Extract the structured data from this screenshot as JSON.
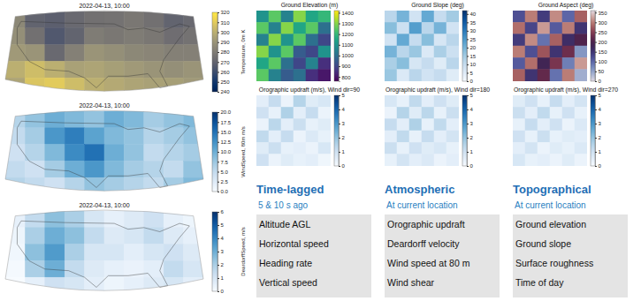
{
  "chart_data": [
    {
      "type": "map",
      "title": "2022-04-13, 10:00",
      "color": "cividis",
      "tick_labels": false,
      "cells": [
        [
          285,
          270,
          268,
          272,
          275,
          276,
          278,
          275,
          270,
          272
        ],
        [
          288,
          275,
          265,
          270,
          280,
          278,
          280,
          278,
          274,
          276
        ],
        [
          292,
          290,
          272,
          282,
          290,
          288,
          285,
          284,
          282,
          282
        ],
        [
          300,
          305,
          300,
          295,
          296,
          294,
          292,
          290,
          288,
          290
        ],
        [
          296,
          308,
          310,
          305,
          300,
          298,
          296,
          295,
          294,
          292
        ]
      ],
      "colorbar_title": "Temperature, 0m K",
      "colorbar_range": [
        240,
        320
      ],
      "colorbar_ticks": [
        240,
        250,
        260,
        270,
        280,
        290,
        300,
        310,
        320
      ]
    },
    {
      "type": "map",
      "title": "2022-04-13, 10:00",
      "color": "blues",
      "tick_labels": false,
      "cells": [
        [
          6,
          8,
          10,
          9,
          8,
          10,
          9,
          7,
          8,
          9
        ],
        [
          5,
          7,
          12,
          14,
          11,
          9,
          8,
          6,
          7,
          8
        ],
        [
          4,
          6,
          9,
          13,
          15,
          10,
          8,
          5,
          6,
          7
        ],
        [
          5,
          4,
          7,
          10,
          12,
          9,
          7,
          6,
          5,
          8
        ],
        [
          6,
          5,
          4,
          6,
          8,
          7,
          6,
          5,
          7,
          9
        ]
      ],
      "colorbar_title": "WindSpeed, 80m m/s",
      "colorbar_range": [
        0,
        20
      ],
      "colorbar_ticks": [
        {
          "value": 0,
          "label": "0.0"
        },
        {
          "value": 2.5,
          "label": "2.5"
        },
        {
          "value": 5,
          "label": "5.0"
        },
        {
          "value": 7.5,
          "label": "7.5"
        },
        {
          "value": 10,
          "label": "10.0"
        },
        {
          "value": 12.5,
          "label": "12.5"
        },
        {
          "value": 15,
          "label": "15.0"
        },
        {
          "value": 17.5,
          "label": "17.5"
        },
        {
          "value": 20,
          "label": "20.0"
        }
      ]
    },
    {
      "type": "map",
      "title": "2022-04-13, 10:00",
      "color": "blues",
      "tick_labels": false,
      "cells": [
        [
          0.5,
          1.5,
          2.5,
          2,
          1,
          0.5,
          0.8,
          1.2,
          0.5,
          0.3
        ],
        [
          0.3,
          2,
          3,
          2.5,
          1.5,
          0.8,
          1,
          1.5,
          0.8,
          0.5
        ],
        [
          0.2,
          2.5,
          3.5,
          2,
          1,
          1,
          0.6,
          1,
          1.2,
          0.8
        ],
        [
          0.1,
          2,
          3,
          1.5,
          0.8,
          0.5,
          0.4,
          0.6,
          1.5,
          1
        ],
        [
          0,
          0.5,
          1.2,
          1,
          0.6,
          0.3,
          0.5,
          0.8,
          1,
          0.6
        ]
      ],
      "colorbar_title": "DeardorffSpeed, m/s",
      "colorbar_range": [
        0,
        6
      ],
      "colorbar_ticks": [
        0,
        1,
        2,
        3,
        4,
        5,
        6
      ]
    },
    {
      "type": "heatmap",
      "title": "Ground Elevation (m)",
      "color": "viridis",
      "tick_labels": false,
      "cells": [
        [
          1100,
          1250,
          1050,
          1300,
          1150,
          1200
        ],
        [
          1250,
          1050,
          1300,
          1150,
          1250,
          1000
        ],
        [
          1050,
          1300,
          1100,
          1250,
          1000,
          900
        ],
        [
          1300,
          1100,
          1250,
          950,
          900,
          1100
        ],
        [
          1150,
          1250,
          1000,
          900,
          1050,
          850
        ],
        [
          1250,
          1050,
          950,
          1000,
          850,
          800
        ]
      ],
      "colorbar_range": [
        760,
        1420
      ],
      "colorbar_ticks": [
        800,
        900,
        1000,
        1100,
        1200,
        1300,
        1400
      ]
    },
    {
      "type": "heatmap",
      "title": "Ground Slope (deg)",
      "color": "blues",
      "tick_labels": false,
      "cells": [
        [
          12,
          20,
          8,
          22,
          10,
          15
        ],
        [
          18,
          9,
          24,
          12,
          20,
          8
        ],
        [
          8,
          22,
          10,
          18,
          7,
          12
        ],
        [
          20,
          12,
          16,
          6,
          14,
          9
        ],
        [
          14,
          18,
          7,
          10,
          5,
          12
        ],
        [
          16,
          6,
          12,
          8,
          10,
          5
        ]
      ],
      "colorbar_range": [
        0,
        42
      ],
      "colorbar_ticks": [
        0,
        5,
        10,
        15,
        20,
        25,
        30,
        35,
        40
      ]
    },
    {
      "type": "heatmap",
      "title": "Ground Aspect (deg)",
      "color": "twilight",
      "tick_labels": false,
      "cells": [
        [
          120,
          300,
          140,
          310,
          100,
          280
        ],
        [
          290,
          130,
          320,
          110,
          300,
          150
        ],
        [
          140,
          310,
          90,
          280,
          160,
          200
        ],
        [
          300,
          120,
          270,
          150,
          230,
          60
        ],
        [
          110,
          290,
          180,
          240,
          80,
          320
        ],
        [
          280,
          150,
          220,
          90,
          300,
          40
        ]
      ],
      "colorbar_range": [
        0,
        360
      ],
      "colorbar_ticks": [
        0,
        50,
        100,
        150,
        200,
        250,
        300,
        350
      ]
    },
    {
      "type": "heatmap",
      "title": "Orographic updraft (m/s), Wind dir=90",
      "color": "blues",
      "tick_labels": false,
      "cells": [
        [
          0.5,
          1.2,
          0.3,
          1.5,
          0.6,
          0.8
        ],
        [
          1.0,
          0.4,
          1.6,
          0.5,
          1.2,
          0.3
        ],
        [
          0.3,
          1.4,
          0.5,
          1.1,
          0.4,
          0.6
        ],
        [
          1.3,
          0.5,
          1.2,
          0.3,
          0.7,
          0.4
        ],
        [
          0.6,
          1.1,
          0.4,
          0.5,
          0.3,
          0.8
        ],
        [
          1.0,
          0.3,
          0.6,
          0.4,
          0.5,
          0.2
        ]
      ],
      "colorbar_range": [
        0,
        5
      ],
      "colorbar_ticks": [
        0,
        1,
        2,
        3,
        4,
        5
      ]
    },
    {
      "type": "heatmap",
      "title": "Orographic updraft (m/s), Wind dir=180",
      "color": "blues",
      "tick_labels": false,
      "cells": [
        [
          0.8,
          0.4,
          1.3,
          0.5,
          1.0,
          0.6
        ],
        [
          0.3,
          1.5,
          0.6,
          1.4,
          0.4,
          1.1
        ],
        [
          1.2,
          0.5,
          1.6,
          0.4,
          1.3,
          0.5
        ],
        [
          0.5,
          1.3,
          0.4,
          1.2,
          0.5,
          0.9
        ],
        [
          1.1,
          0.4,
          1.0,
          0.6,
          0.8,
          0.4
        ],
        [
          0.4,
          0.9,
          0.5,
          0.7,
          0.3,
          0.5
        ]
      ],
      "colorbar_range": [
        0,
        5
      ],
      "colorbar_ticks": [
        0,
        1,
        2,
        3,
        4,
        5
      ]
    },
    {
      "type": "heatmap",
      "title": "Orographic updraft (m/s), Wind dir=270",
      "color": "blues",
      "tick_labels": false,
      "cells": [
        [
          0.6,
          1.0,
          0.4,
          1.2,
          0.5,
          0.9
        ],
        [
          1.1,
          0.5,
          1.3,
          0.4,
          1.0,
          0.4
        ],
        [
          0.4,
          1.2,
          0.5,
          1.0,
          0.3,
          0.7
        ],
        [
          1.0,
          0.4,
          1.1,
          0.4,
          0.6,
          0.5
        ],
        [
          0.5,
          0.9,
          0.3,
          0.6,
          0.4,
          0.7
        ],
        [
          0.8,
          0.4,
          0.5,
          0.3,
          0.6,
          0.3
        ]
      ],
      "colorbar_range": [
        0,
        5
      ],
      "colorbar_ticks": [
        0,
        1,
        2,
        3,
        4,
        5
      ]
    }
  ],
  "feature_groups": [
    {
      "title": "Time-lagged",
      "subtitle": "5 & 10 s ago",
      "items": [
        "Altitude AGL",
        "Horizontal speed",
        "Heading rate",
        "Vertical speed"
      ]
    },
    {
      "title": "Atmospheric",
      "subtitle": "At current location",
      "items": [
        "Orographic updraft",
        "Deardorff velocity",
        "Wind speed at 80 m",
        "Wind shear"
      ]
    },
    {
      "title": "Topographical",
      "subtitle": "At current location",
      "items": [
        "Ground elevation",
        "Ground slope",
        "Surface roughness",
        "Time of day"
      ]
    }
  ]
}
